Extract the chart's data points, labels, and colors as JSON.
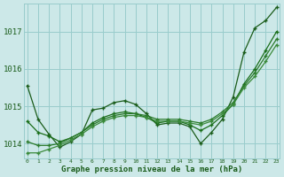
{
  "xlabel": "Graphe pression niveau de la mer (hPa)",
  "background_color": "#cce8e8",
  "grid_color": "#99cccc",
  "line_color1": "#1a5c1a",
  "line_color2": "#1a6e1a",
  "line_color3": "#2a7a2a",
  "line_color4": "#3a8a3a",
  "ylim": [
    1013.6,
    1017.75
  ],
  "xlim": [
    -0.3,
    23.3
  ],
  "yticks": [
    1014,
    1015,
    1016,
    1017
  ],
  "xticks": [
    0,
    1,
    2,
    3,
    4,
    5,
    6,
    7,
    8,
    9,
    10,
    11,
    12,
    13,
    14,
    15,
    16,
    17,
    18,
    19,
    20,
    21,
    22,
    23
  ],
  "series1": [
    1015.55,
    1014.65,
    1014.25,
    1013.9,
    1014.05,
    1014.25,
    1014.9,
    1014.95,
    1015.1,
    1015.15,
    1015.05,
    1014.8,
    1014.5,
    1014.55,
    1014.55,
    1014.45,
    1014.0,
    1014.3,
    1014.65,
    1015.25,
    1016.45,
    1017.1,
    1017.3,
    1017.65
  ],
  "series2": [
    1014.6,
    1014.3,
    1014.2,
    1014.05,
    1014.15,
    1014.3,
    1014.55,
    1014.7,
    1014.8,
    1014.85,
    1014.8,
    1014.7,
    1014.55,
    1014.6,
    1014.6,
    1014.5,
    1014.35,
    1014.5,
    1014.75,
    1015.05,
    1015.6,
    1016.0,
    1016.5,
    1017.0
  ],
  "series3": [
    1014.05,
    1013.95,
    1013.95,
    1014.0,
    1014.15,
    1014.3,
    1014.5,
    1014.65,
    1014.75,
    1014.8,
    1014.8,
    1014.75,
    1014.65,
    1014.65,
    1014.65,
    1014.6,
    1014.55,
    1014.65,
    1014.85,
    1015.1,
    1015.55,
    1015.9,
    1016.35,
    1016.8
  ],
  "series4": [
    1013.75,
    1013.75,
    1013.85,
    1013.95,
    1014.1,
    1014.25,
    1014.45,
    1014.6,
    1014.7,
    1014.75,
    1014.75,
    1014.7,
    1014.6,
    1014.6,
    1014.6,
    1014.55,
    1014.5,
    1014.6,
    1014.8,
    1015.05,
    1015.5,
    1015.8,
    1016.2,
    1016.65
  ]
}
